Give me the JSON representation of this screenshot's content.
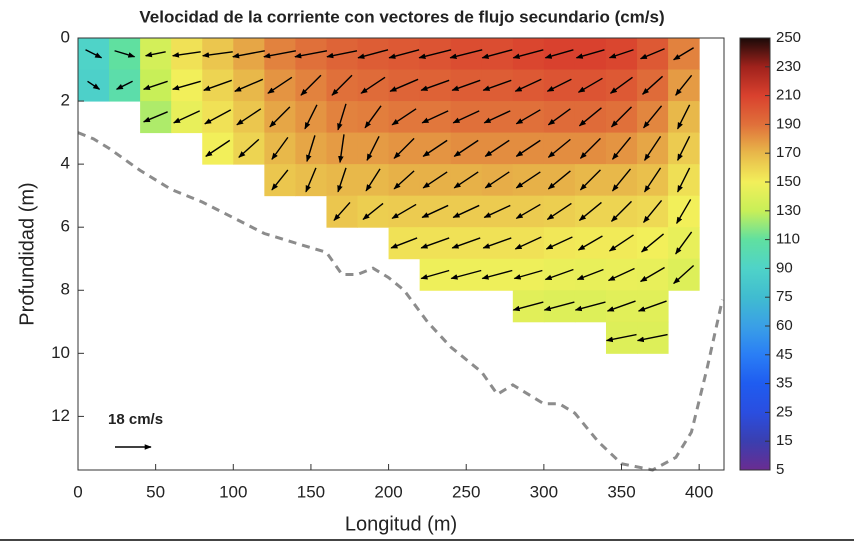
{
  "chart_data": {
    "type": "heatmap",
    "title": "Velocidad de la corriente con vectores de flujo secundario (cm/s)",
    "x_label": "Longitud (m)",
    "y_label": "Profundidad (m)",
    "xlim": [
      0,
      416
    ],
    "ylim": [
      0,
      13.7
    ],
    "y_reversed": true,
    "xticks": [
      0,
      50,
      100,
      150,
      200,
      250,
      300,
      350,
      400
    ],
    "yticks": [
      0,
      2,
      4,
      6,
      8,
      10,
      12
    ],
    "x": [
      10,
      30,
      50,
      70,
      90,
      110,
      130,
      150,
      170,
      190,
      210,
      230,
      250,
      270,
      290,
      310,
      330,
      350,
      370,
      390
    ],
    "y": [
      0.5,
      1.5,
      2.5,
      3.5,
      4.5,
      5.5,
      6.5,
      7.5,
      8.5,
      9.5
    ],
    "z": [
      [
        90,
        110,
        135,
        155,
        165,
        175,
        185,
        190,
        195,
        198,
        200,
        202,
        205,
        205,
        208,
        210,
        210,
        208,
        200,
        185
      ],
      [
        88,
        105,
        130,
        150,
        160,
        170,
        180,
        185,
        190,
        192,
        195,
        196,
        198,
        198,
        200,
        202,
        202,
        200,
        192,
        178
      ],
      [
        null,
        null,
        125,
        145,
        155,
        165,
        175,
        180,
        185,
        186,
        188,
        188,
        190,
        190,
        190,
        192,
        192,
        190,
        184,
        170
      ],
      [
        null,
        null,
        null,
        null,
        150,
        160,
        170,
        175,
        178,
        178,
        180,
        180,
        182,
        182,
        182,
        182,
        182,
        180,
        175,
        163
      ],
      [
        null,
        null,
        null,
        null,
        null,
        null,
        165,
        168,
        170,
        170,
        172,
        172,
        172,
        173,
        172,
        172,
        170,
        170,
        167,
        156
      ],
      [
        null,
        null,
        null,
        null,
        null,
        null,
        null,
        null,
        165,
        162,
        163,
        163,
        163,
        163,
        163,
        162,
        160,
        160,
        158,
        150
      ],
      [
        null,
        null,
        null,
        null,
        null,
        null,
        null,
        null,
        null,
        null,
        155,
        155,
        155,
        155,
        155,
        153,
        152,
        152,
        150,
        145
      ],
      [
        null,
        null,
        null,
        null,
        null,
        null,
        null,
        null,
        null,
        null,
        null,
        148,
        148,
        148,
        148,
        146,
        145,
        146,
        145,
        140
      ],
      [
        null,
        null,
        null,
        null,
        null,
        null,
        null,
        null,
        null,
        null,
        null,
        null,
        null,
        null,
        142,
        140,
        140,
        142,
        142,
        null
      ],
      [
        null,
        null,
        null,
        null,
        null,
        null,
        null,
        null,
        null,
        null,
        null,
        null,
        null,
        null,
        null,
        null,
        null,
        140,
        140,
        null
      ]
    ],
    "u": [
      [
        8,
        10,
        -10,
        -14,
        -15,
        -16,
        -16,
        -16,
        -15,
        -15,
        -15,
        -16,
        -16,
        -15,
        -15,
        -14,
        -14,
        -12,
        -12,
        -10
      ],
      [
        6,
        -8,
        -12,
        -14,
        -14,
        -14,
        -12,
        -10,
        -10,
        -12,
        -14,
        -14,
        -14,
        -14,
        -13,
        -12,
        -12,
        -11,
        -10,
        -8
      ],
      [
        null,
        null,
        -12,
        -13,
        -13,
        -12,
        -10,
        -6,
        -4,
        -8,
        -12,
        -13,
        -13,
        -13,
        -12,
        -11,
        -11,
        -10,
        -9,
        -6
      ],
      [
        null,
        null,
        null,
        null,
        -12,
        -10,
        -8,
        -4,
        -2,
        -6,
        -10,
        -12,
        -12,
        -12,
        -12,
        -11,
        -10,
        -9,
        -8,
        -6
      ],
      [
        null,
        null,
        null,
        null,
        null,
        null,
        -8,
        -5,
        -4,
        -7,
        -10,
        -12,
        -12,
        -12,
        -12,
        -11,
        -10,
        -9,
        -8,
        -6
      ],
      [
        null,
        null,
        null,
        null,
        null,
        null,
        null,
        null,
        -8,
        -10,
        -12,
        -13,
        -13,
        -13,
        -12,
        -12,
        -11,
        -10,
        -9,
        -7
      ],
      [
        null,
        null,
        null,
        null,
        null,
        null,
        null,
        null,
        null,
        null,
        -13,
        -14,
        -14,
        -14,
        -13,
        -13,
        -12,
        -12,
        -11,
        -8
      ],
      [
        null,
        null,
        null,
        null,
        null,
        null,
        null,
        null,
        null,
        null,
        null,
        -14,
        -15,
        -15,
        -14,
        -14,
        -13,
        -13,
        -12,
        -10
      ],
      [
        null,
        null,
        null,
        null,
        null,
        null,
        null,
        null,
        null,
        null,
        null,
        null,
        null,
        null,
        -15,
        -15,
        -15,
        -14,
        -14,
        null
      ],
      [
        null,
        null,
        null,
        null,
        null,
        null,
        null,
        null,
        null,
        null,
        null,
        null,
        null,
        null,
        null,
        null,
        null,
        -15,
        -15,
        null
      ]
    ],
    "w": [
      [
        4,
        3,
        2,
        2,
        2,
        3,
        3,
        3,
        3,
        4,
        4,
        4,
        4,
        4,
        4,
        4,
        4,
        4,
        5,
        6
      ],
      [
        4,
        4,
        4,
        4,
        5,
        6,
        8,
        10,
        10,
        8,
        6,
        5,
        5,
        5,
        6,
        6,
        7,
        8,
        9,
        10
      ],
      [
        null,
        null,
        5,
        6,
        7,
        8,
        10,
        12,
        13,
        11,
        8,
        6,
        6,
        6,
        7,
        8,
        9,
        10,
        11,
        12
      ],
      [
        null,
        null,
        null,
        null,
        8,
        9,
        11,
        13,
        14,
        12,
        10,
        8,
        8,
        8,
        8,
        9,
        10,
        11,
        12,
        12
      ],
      [
        null,
        null,
        null,
        null,
        null,
        null,
        10,
        12,
        12,
        11,
        9,
        8,
        8,
        8,
        8,
        9,
        10,
        11,
        12,
        12
      ],
      [
        null,
        null,
        null,
        null,
        null,
        null,
        null,
        null,
        9,
        8,
        7,
        6,
        6,
        6,
        7,
        8,
        9,
        10,
        11,
        12
      ],
      [
        null,
        null,
        null,
        null,
        null,
        null,
        null,
        null,
        null,
        null,
        5,
        5,
        5,
        5,
        6,
        6,
        7,
        8,
        9,
        11
      ],
      [
        null,
        null,
        null,
        null,
        null,
        null,
        null,
        null,
        null,
        null,
        null,
        4,
        4,
        4,
        4,
        5,
        5,
        6,
        7,
        9
      ],
      [
        null,
        null,
        null,
        null,
        null,
        null,
        null,
        null,
        null,
        null,
        null,
        null,
        null,
        null,
        4,
        4,
        4,
        5,
        5,
        null
      ],
      [
        null,
        null,
        null,
        null,
        null,
        null,
        null,
        null,
        null,
        null,
        null,
        null,
        null,
        null,
        null,
        null,
        null,
        3,
        3,
        null
      ]
    ],
    "vector_reference": {
      "label": "18 cm/s",
      "value": 18
    },
    "bed": {
      "x": [
        0,
        10,
        20,
        40,
        60,
        80,
        100,
        120,
        140,
        160,
        170,
        180,
        190,
        200,
        210,
        225,
        240,
        260,
        270,
        280,
        290,
        300,
        310,
        320,
        335,
        350,
        370,
        385,
        395,
        405,
        415
      ],
      "y": [
        3.0,
        3.2,
        3.5,
        4.2,
        4.8,
        5.2,
        5.7,
        6.2,
        6.5,
        6.8,
        7.5,
        7.5,
        7.3,
        7.6,
        8.0,
        9.0,
        9.8,
        10.6,
        11.3,
        11.0,
        11.3,
        11.6,
        11.6,
        11.9,
        12.8,
        13.5,
        13.7,
        13.3,
        12.5,
        10.5,
        8.3
      ],
      "color": "#8c8c8c"
    },
    "colorbar": {
      "ticks": [
        5,
        15,
        25,
        35,
        45,
        60,
        75,
        90,
        110,
        130,
        150,
        170,
        190,
        210,
        230,
        250
      ],
      "colors": [
        "#6a2c91",
        "#3a3fb0",
        "#2a4ee0",
        "#1f5cf0",
        "#2a7ef5",
        "#3aa0e6",
        "#40bcd0",
        "#4fd3c8",
        "#60e0a0",
        "#c8ef58",
        "#f2ef5a",
        "#e8b84a",
        "#e0703a",
        "#d9412e",
        "#a0221c",
        "#1a0a08"
      ]
    }
  }
}
